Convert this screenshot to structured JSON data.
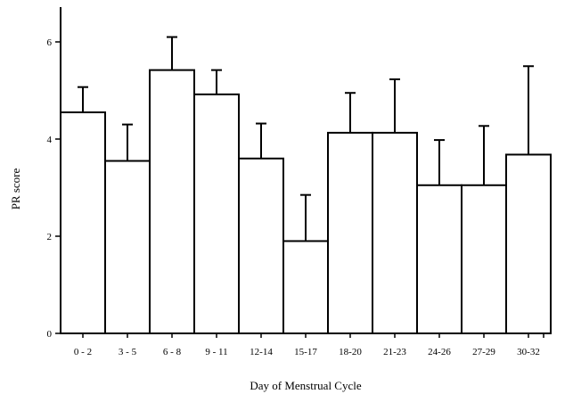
{
  "chart_data": {
    "type": "bar",
    "xlabel": "Day of Menstrual Cycle",
    "ylabel": "PR score",
    "ylim": [
      0,
      6.8
    ],
    "yticks": [
      0,
      2,
      4,
      6
    ],
    "categories": [
      "0 - 2",
      "3 - 5",
      "6 - 8",
      "9 - 11",
      "12-14",
      "15-17",
      "18-20",
      "21-23",
      "24-26",
      "27-29",
      "30-32"
    ],
    "values": [
      4.55,
      3.55,
      5.42,
      4.92,
      3.6,
      1.9,
      4.13,
      4.13,
      3.05,
      3.05,
      3.68
    ],
    "error_upper": [
      5.07,
      4.3,
      6.1,
      5.42,
      4.32,
      2.85,
      4.95,
      5.23,
      3.98,
      4.27,
      5.5
    ],
    "grid": false,
    "legend": "none"
  }
}
